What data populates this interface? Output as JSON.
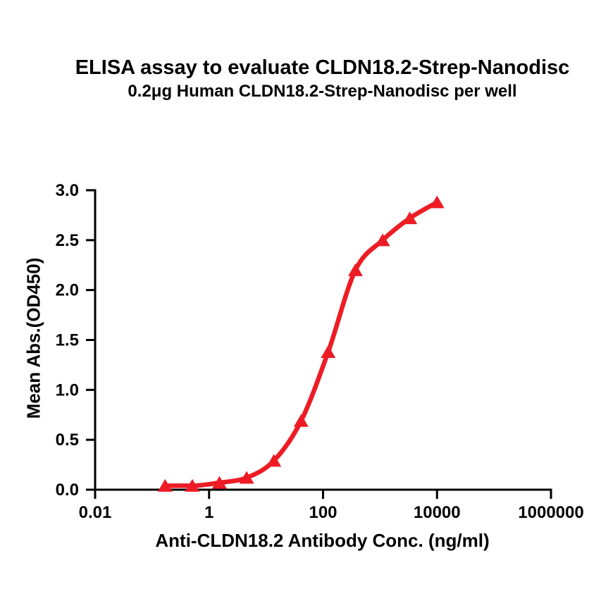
{
  "chart": {
    "title": "ELISA assay to evaluate CLDN18.2-Strep-Nanodisc",
    "subtitle": "0.2μg Human CLDN18.2-Strep-Nanodisc per well",
    "x_label": "Anti-CLDN18.2 Antibody Conc. (ng/ml)",
    "y_label": "Mean Abs.(OD450)"
  },
  "chart_data": {
    "type": "scatter",
    "title": "ELISA assay to evaluate CLDN18.2-Strep-Nanodisc",
    "subtitle": "0.2μg Human CLDN18.2-Strep-Nanodisc per well",
    "xlabel": "Anti-CLDN18.2 Antibody Conc. (ng/ml)",
    "ylabel": "Mean Abs.(OD450)",
    "x_scale": "log10",
    "xlim": [
      0.01,
      1000000
    ],
    "ylim": [
      0.0,
      3.0
    ],
    "x_tick_values": [
      0.01,
      1,
      100,
      10000,
      1000000
    ],
    "x_tick_labels": [
      "0.01",
      "1",
      "100",
      "10000",
      "1000000"
    ],
    "y_tick_values": [
      0.0,
      0.5,
      1.0,
      1.5,
      2.0,
      2.5,
      3.0
    ],
    "y_tick_labels": [
      "0.0",
      "0.5",
      "1.0",
      "1.5",
      "2.0",
      "2.5",
      "3.0"
    ],
    "grid": false,
    "legend": "none",
    "series": [
      {
        "name": "CLDN18.2-Strep-Nanodisc",
        "marker": "triangle-up",
        "color": "#ED1C24",
        "curve": "smooth-sigmoid-fit",
        "x": [
          0.169,
          0.508,
          1.52,
          4.57,
          13.7,
          41.2,
          123,
          370,
          1111,
          3333,
          10000
        ],
        "y": [
          0.04,
          0.04,
          0.07,
          0.12,
          0.29,
          0.69,
          1.38,
          2.2,
          2.5,
          2.72,
          2.88
        ]
      }
    ]
  },
  "colors": {
    "accent": "#ED1C24",
    "text": "#000000",
    "background": "#FFFFFF"
  }
}
